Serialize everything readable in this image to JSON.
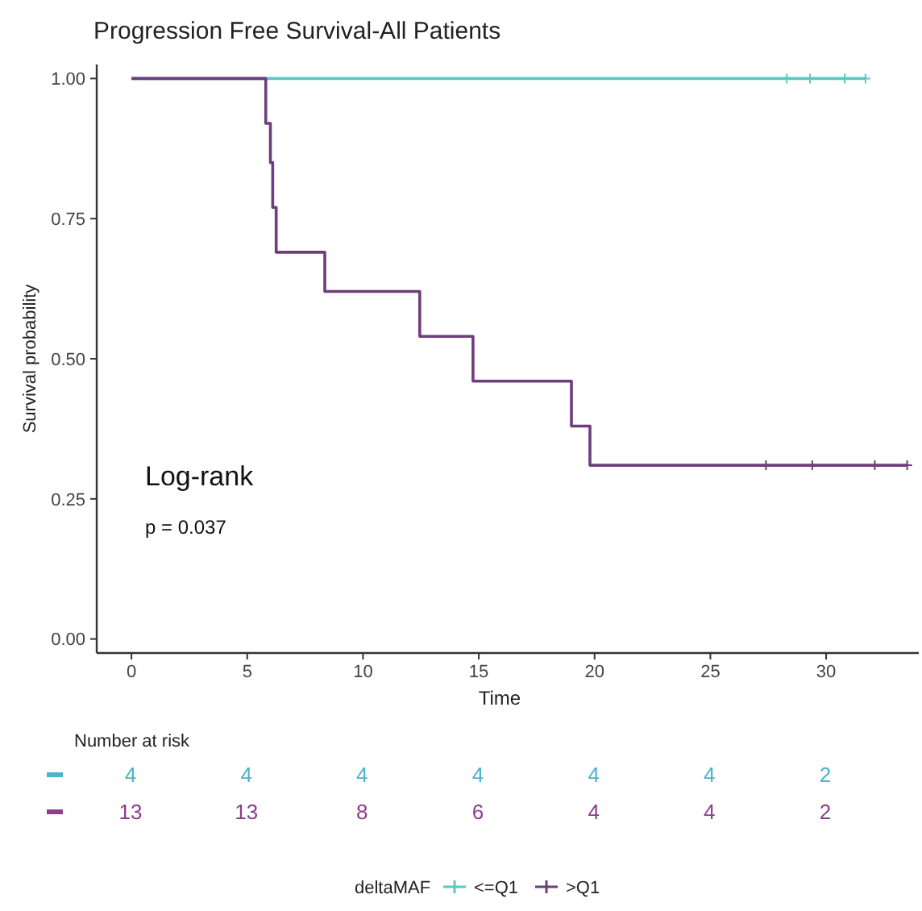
{
  "chart_data": [
    {
      "type": "step",
      "title": "Progression Free Survival-All Patients",
      "xlabel": "Time",
      "ylabel": "Survival probability",
      "legend_title": "deltaMAF",
      "legend": "bottom",
      "xlim": [
        -1.5,
        34
      ],
      "ylim": [
        -0.025,
        1.025
      ],
      "xticks": [
        0,
        5,
        10,
        15,
        20,
        25,
        30
      ],
      "yticks": [
        {
          "value": 0,
          "label": "0.00"
        },
        {
          "value": 0.25,
          "label": "0.25"
        },
        {
          "value": 0.5,
          "label": "0.50"
        },
        {
          "value": 0.75,
          "label": "0.75"
        },
        {
          "value": 1,
          "label": "1.00"
        }
      ],
      "grid": false,
      "annotations": [
        "Log-rank",
        "p = 0.037"
      ],
      "series": [
        {
          "name": "<=Q1",
          "type": "step",
          "color": "#5cc8c0",
          "x": [
            0,
            31.7
          ],
          "values": [
            1,
            1
          ]
        },
        {
          "name": ">Q1",
          "type": "step",
          "color": "#6e3d7c",
          "x": [
            0,
            5.8,
            6.0,
            6.1,
            6.25,
            8.35,
            12.45,
            14.75,
            19.0,
            19.8,
            33.5
          ],
          "values": [
            1,
            0.92,
            0.85,
            0.77,
            0.69,
            0.62,
            0.54,
            0.46,
            0.38,
            0.31,
            0.31
          ]
        },
        {
          "type": "scatter",
          "marker": "cross",
          "color": "#5cc8c0",
          "x": [
            28.3,
            29.3,
            30.8,
            31.7
          ],
          "values": [
            1,
            1,
            1,
            1
          ]
        },
        {
          "type": "scatter",
          "marker": "cross",
          "color": "#6e3d7c",
          "x": [
            27.4,
            29.4,
            32.1,
            33.5
          ],
          "values": [
            0.31,
            0.31,
            0.31,
            0.31
          ]
        }
      ]
    },
    {
      "type": "heatmap",
      "title": "Number at risk",
      "categories": [
        null,
        null,
        null,
        null,
        null,
        null,
        null
      ],
      "y_categories": [
        null,
        null
      ],
      "data_labels": true,
      "colors": [
        "#4ab5c6",
        "#8a3f8a"
      ],
      "cells": [
        [
          4,
          4,
          4,
          4,
          4,
          4,
          2
        ],
        [
          13,
          13,
          8,
          6,
          4,
          4,
          2
        ]
      ]
    }
  ]
}
